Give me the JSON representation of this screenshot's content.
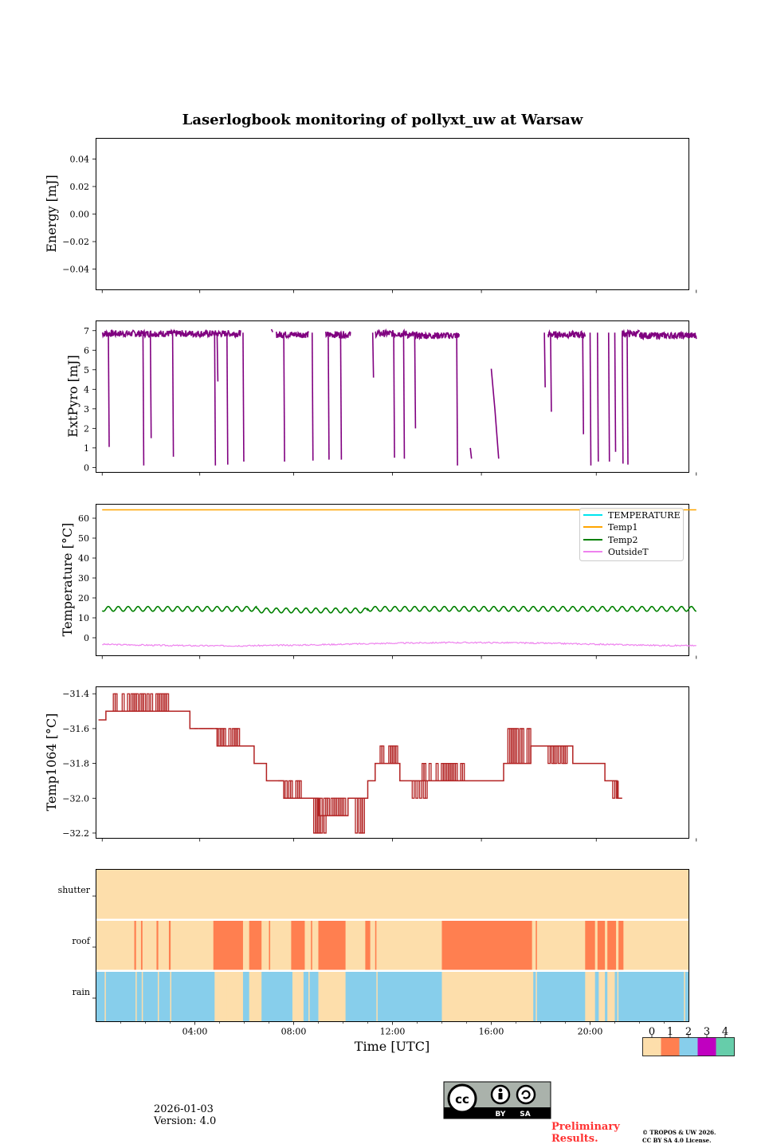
{
  "figure": {
    "title": "Laserlogbook monitoring of pollyxt_uw at Warsaw",
    "date": "2026-01-03",
    "version": "Version: 4.0",
    "preliminary": [
      "Preliminary",
      "Results."
    ],
    "copyright": [
      "© TROPOS & UW 2026.",
      "CC BY SA 4.0 License."
    ],
    "license_badge": {
      "text": "cc",
      "labels": [
        "BY",
        "SA"
      ]
    }
  },
  "colors": {
    "extpyro": "#800080",
    "temperature": "#00e5ee",
    "temp1": "#ffa500",
    "temp2": "#008000",
    "outsideT": "#ee82ee",
    "temp1064": "#b22222",
    "status": [
      "#fddeab",
      "#ff7f50",
      "#87ceeb",
      "#c000c0",
      "#66cdaa"
    ],
    "preliminary": "#ff3333"
  },
  "chart_data": [
    {
      "type": "line",
      "panel": "energy",
      "ylabel": "Energy [mJ]",
      "ylim": [
        -0.055,
        0.055
      ],
      "yticks": [
        0.04,
        0.02,
        0.0,
        -0.02,
        -0.04
      ],
      "ytick_labels": [
        "0.04",
        "0.02",
        "0.00",
        "−0.02",
        "−0.04"
      ],
      "series": []
    },
    {
      "type": "line",
      "panel": "extpyro",
      "ylabel": "ExtPyro [mJ]",
      "ylim": [
        -0.25,
        7.5
      ],
      "yticks": [
        0,
        1,
        2,
        3,
        4,
        5,
        6,
        7
      ],
      "ytick_labels": [
        "0",
        "1",
        "2",
        "3",
        "4",
        "5",
        "6",
        "7"
      ],
      "series": [
        {
          "name": "ExtPyro",
          "segments": [
            {
              "x": [
                0.25,
                2.5
              ],
              "y": 6.85
            },
            {
              "x": [
                2.5,
                5.8
              ],
              "y": 6.85
            },
            {
              "x": [
                5.8,
                5.85
              ],
              "y": 6.9
            },
            {
              "x": [
                7.1,
                7.15
              ],
              "y": 6.9
            },
            {
              "x": [
                7.3,
                8.6
              ],
              "y": 6.8
            },
            {
              "x": [
                9.3,
                10.3
              ],
              "y": 6.8
            },
            {
              "x": [
                11.3,
                12.6
              ],
              "y": 6.85
            },
            {
              "x": [
                12.6,
                14.7
              ],
              "y": 6.75
            },
            {
              "x": [
                18.3,
                19.8
              ],
              "y": 6.8
            },
            {
              "x": [
                21.3,
                22.0
              ],
              "y": 6.85
            },
            {
              "x": [
                22.0,
                24.3
              ],
              "y": 6.75
            }
          ],
          "drops": [
            {
              "x": 0.5,
              "y": 1.05
            },
            {
              "x": 1.9,
              "y": 0.1
            },
            {
              "x": 2.2,
              "y": 1.5
            },
            {
              "x": 3.1,
              "y": 0.55
            },
            {
              "x": 4.8,
              "y": 0.1
            },
            {
              "x": 4.9,
              "y": 4.4
            },
            {
              "x": 5.3,
              "y": 0.15
            },
            {
              "x": 5.95,
              "y": 0.3
            },
            {
              "x": 7.6,
              "y": 0.3
            },
            {
              "x": 8.75,
              "y": 0.35
            },
            {
              "x": 9.4,
              "y": 0.4
            },
            {
              "x": 9.9,
              "y": 0.4
            },
            {
              "x": 11.2,
              "y": 4.6
            },
            {
              "x": 12.05,
              "y": 0.5
            },
            {
              "x": 12.45,
              "y": 0.45
            },
            {
              "x": 12.9,
              "y": 2.0
            },
            {
              "x": 14.6,
              "y": 0.1
            },
            {
              "x": 18.15,
              "y": 4.1
            },
            {
              "x": 18.4,
              "y": 2.85
            },
            {
              "x": 19.7,
              "y": 1.7
            },
            {
              "x": 20.0,
              "y": 0.1
            },
            {
              "x": 20.3,
              "y": 0.3
            },
            {
              "x": 20.75,
              "y": 0.3
            },
            {
              "x": 21.0,
              "y": 0.8
            },
            {
              "x": 21.3,
              "y": 0.2
            },
            {
              "x": 21.5,
              "y": 0.15
            }
          ],
          "isolated": [
            {
              "x": [
                15.15,
                15.2
              ],
              "y": [
                1.0,
                0.45
              ]
            },
            {
              "x": [
                16.0,
                16.15,
                16.3
              ],
              "y": [
                5.05,
                2.95,
                0.45
              ]
            }
          ]
        }
      ]
    },
    {
      "type": "line",
      "panel": "temperature",
      "ylabel": "Temperature [°C]",
      "ylim": [
        -9,
        67
      ],
      "yticks": [
        0,
        10,
        20,
        30,
        40,
        50,
        60
      ],
      "ytick_labels": [
        "0",
        "10",
        "20",
        "30",
        "40",
        "50",
        "60"
      ],
      "legend_position": "upper right",
      "legend": [
        "TEMPERATURE",
        "Temp1",
        "Temp2",
        "OutsideT"
      ],
      "series": [
        {
          "name": "TEMPERATURE",
          "values": []
        },
        {
          "name": "Temp1",
          "x_range": [
            0.25,
            24.3
          ],
          "y": 64.2
        },
        {
          "name": "Temp2",
          "x_range": [
            0.25,
            24.3
          ],
          "mean": 14.5,
          "amplitude": 1.2,
          "period_hours": 0.4
        },
        {
          "name": "OutsideT",
          "x_range": [
            0.25,
            24.3
          ],
          "mean": -3.2,
          "amplitude": 0.7
        }
      ]
    },
    {
      "type": "line",
      "panel": "temp1064",
      "ylabel": "Temp1064 [°C]",
      "ylim": [
        -32.23,
        -31.36
      ],
      "yticks": [
        -31.4,
        -31.6,
        -31.8,
        -32.0,
        -32.2
      ],
      "ytick_labels": [
        "−31.4",
        "−31.6",
        "−31.8",
        "−32.0",
        "−32.2"
      ],
      "series": [
        {
          "name": "Temp1064",
          "levels": [
            {
              "x": [
                0.1,
                0.4
              ],
              "y": -31.55
            },
            {
              "x": [
                0.4,
                3.8
              ],
              "y": -31.5
            },
            {
              "x": [
                3.8,
                4.9
              ],
              "y": -31.6
            },
            {
              "x": [
                4.9,
                6.4
              ],
              "y": -31.7
            },
            {
              "x": [
                6.4,
                6.9
              ],
              "y": -31.8
            },
            {
              "x": [
                6.9,
                7.6
              ],
              "y": -31.9
            },
            {
              "x": [
                7.6,
                8.4
              ],
              "y": -32.0
            },
            {
              "x": [
                8.4,
                9.0
              ],
              "y": -32.0
            },
            {
              "x": [
                9.0,
                10.2
              ],
              "y": -32.1
            },
            {
              "x": [
                10.2,
                11.0
              ],
              "y": -32.0
            },
            {
              "x": [
                11.0,
                11.3
              ],
              "y": -31.9
            },
            {
              "x": [
                11.3,
                12.3
              ],
              "y": -31.8
            },
            {
              "x": [
                12.3,
                16.5
              ],
              "y": -31.9
            },
            {
              "x": [
                16.5,
                17.6
              ],
              "y": -31.8
            },
            {
              "x": [
                17.6,
                19.3
              ],
              "y": -31.7
            },
            {
              "x": [
                19.3,
                20.6
              ],
              "y": -31.8
            },
            {
              "x": [
                20.6,
                21.1
              ],
              "y": -31.9
            },
            {
              "x": [
                21.1,
                21.3
              ],
              "y": -32.0
            }
          ],
          "spikes": [
            {
              "x": [
                0.7,
                3.0
              ],
              "y": -31.4
            },
            {
              "x": [
                3.9,
                5.8
              ],
              "y": -31.6
            },
            {
              "x": [
                7.3,
                8.3
              ],
              "y": -31.9
            },
            {
              "x": [
                8.6,
                9.3
              ],
              "y": -32.2
            },
            {
              "x": [
                9.0,
                10.1
              ],
              "y": -32.0
            },
            {
              "x": [
                10.5,
                11.0
              ],
              "y": -32.2
            },
            {
              "x": [
                11.5,
                12.2
              ],
              "y": -31.7
            },
            {
              "x": [
                12.8,
                13.4
              ],
              "y": -32.0
            },
            {
              "x": [
                13.2,
                14.9
              ],
              "y": -31.8
            },
            {
              "x": [
                16.6,
                17.8
              ],
              "y": -31.6
            },
            {
              "x": [
                18.3,
                19.2
              ],
              "y": -31.8
            },
            {
              "x": [
                20.7,
                21.2
              ],
              "y": -32.0
            }
          ]
        }
      ]
    },
    {
      "type": "heatmap",
      "panel": "status",
      "rows": [
        "shutter",
        "roof",
        "rain"
      ],
      "xlabel": "Time [UTC]",
      "xlim": [
        0,
        24
      ],
      "xticks": [
        4,
        8,
        12,
        16,
        20
      ],
      "xtick_labels": [
        "04:00",
        "08:00",
        "12:00",
        "16:00",
        "20:00"
      ],
      "colorbar_ticks": [
        "0",
        "1",
        "2",
        "3",
        "4"
      ],
      "roof_open_intervals": [
        [
          1.55,
          1.62
        ],
        [
          1.82,
          1.88
        ],
        [
          2.45,
          2.52
        ],
        [
          2.95,
          3.02
        ],
        [
          4.75,
          5.95
        ],
        [
          6.2,
          6.7
        ],
        [
          7.0,
          7.05
        ],
        [
          7.9,
          8.45
        ],
        [
          8.7,
          8.75
        ],
        [
          9.0,
          10.1
        ],
        [
          10.9,
          11.1
        ],
        [
          11.3,
          11.35
        ],
        [
          14.0,
          17.65
        ],
        [
          17.8,
          17.85
        ],
        [
          19.8,
          20.2
        ],
        [
          20.3,
          20.6
        ],
        [
          20.7,
          21.05
        ],
        [
          21.15,
          21.35
        ]
      ]
    }
  ]
}
